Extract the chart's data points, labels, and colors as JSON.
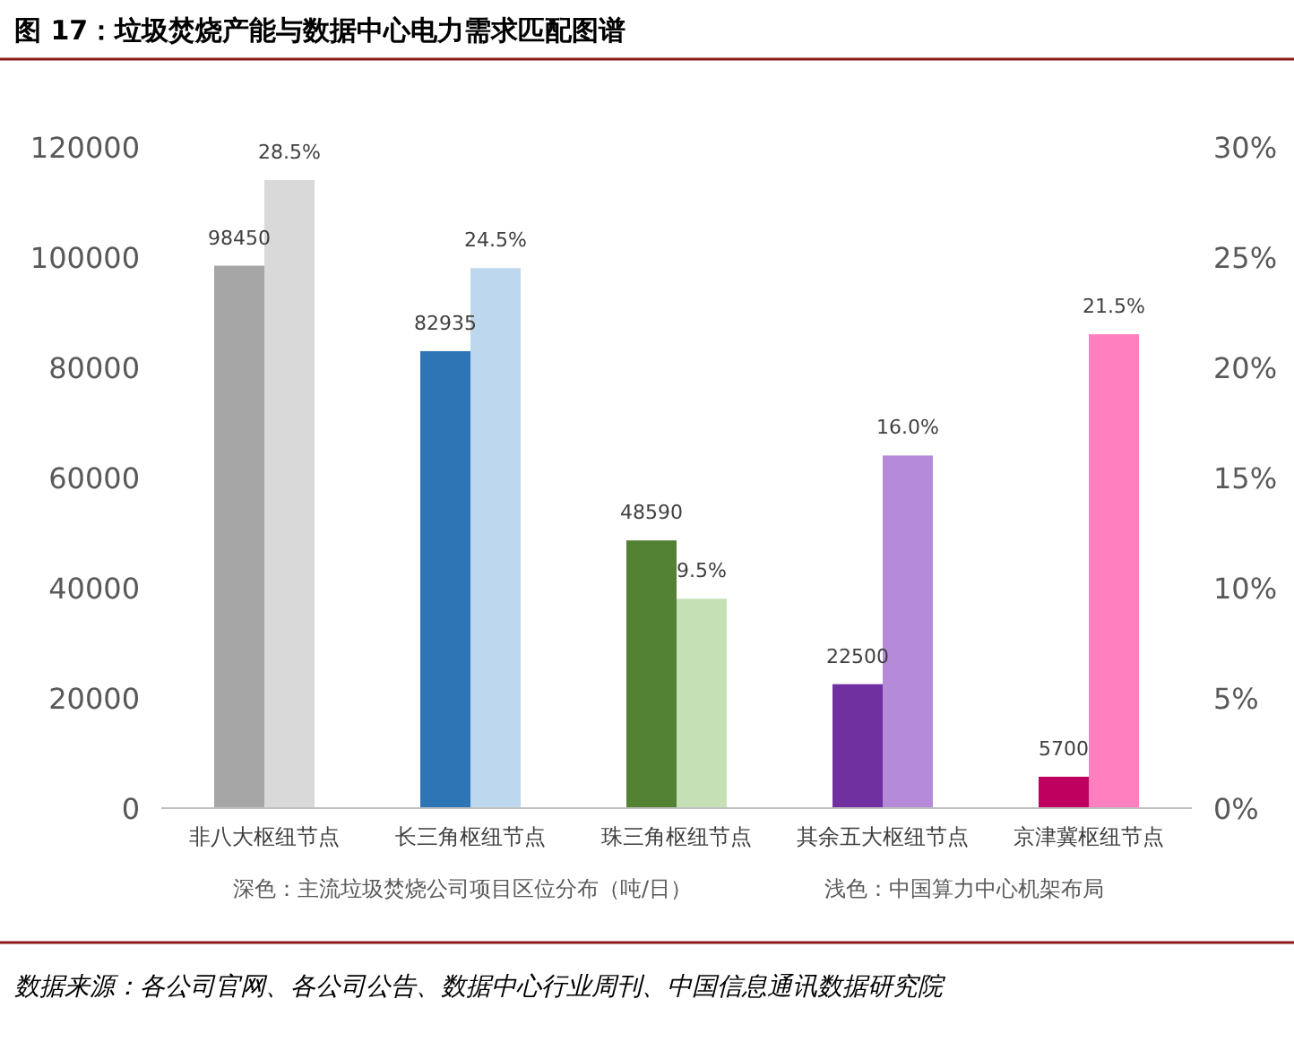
{
  "chart_data": {
    "type": "bar",
    "title": "图 17：垃圾焚烧产能与数据中心电力需求匹配图谱",
    "categories": [
      "非八大枢纽节点",
      "长三角枢纽节点",
      "珠三角枢纽节点",
      "其余五大枢纽节点",
      "京津冀枢纽节点"
    ],
    "series": [
      {
        "axis": "y",
        "values": [
          98450,
          82935,
          48590,
          22500,
          5700
        ],
        "colors": [
          "#a6a6a6",
          "#2e75b6",
          "#548235",
          "#7030a0",
          "#c0005f"
        ],
        "value_labels": [
          "98450",
          "82935",
          "48590",
          "22500",
          "5700"
        ]
      },
      {
        "axis": "y2",
        "values": [
          28.5,
          24.5,
          9.5,
          16.0,
          21.5
        ],
        "colors": [
          "#d9d9d9",
          "#bdd7ee",
          "#c5e0b4",
          "#b48ad9",
          "#ff7fbf"
        ],
        "value_labels": [
          "28.5%",
          "24.5%",
          "9.5%",
          "16.0%",
          "21.5%"
        ]
      }
    ],
    "ylim": [
      0,
      120000
    ],
    "yticks": [
      0,
      20000,
      40000,
      60000,
      80000,
      100000,
      120000
    ],
    "y2lim": [
      0,
      30
    ],
    "y2ticks": [
      {
        "value": 0,
        "label": "0%"
      },
      {
        "value": 5,
        "label": "5%"
      },
      {
        "value": 10,
        "label": "10%"
      },
      {
        "value": 15,
        "label": "15%"
      },
      {
        "value": 20,
        "label": "20%"
      },
      {
        "value": 25,
        "label": "25%"
      },
      {
        "value": 30,
        "label": "30%"
      }
    ],
    "annotations": [
      "深色：主流垃圾焚烧公司项目区位分布（吨/日）",
      "浅色：中国算力中心机架布局",
      "数据来源：各公司官网、各公司公告、数据中心行业周刊、中国信息通讯数据研究院"
    ]
  }
}
